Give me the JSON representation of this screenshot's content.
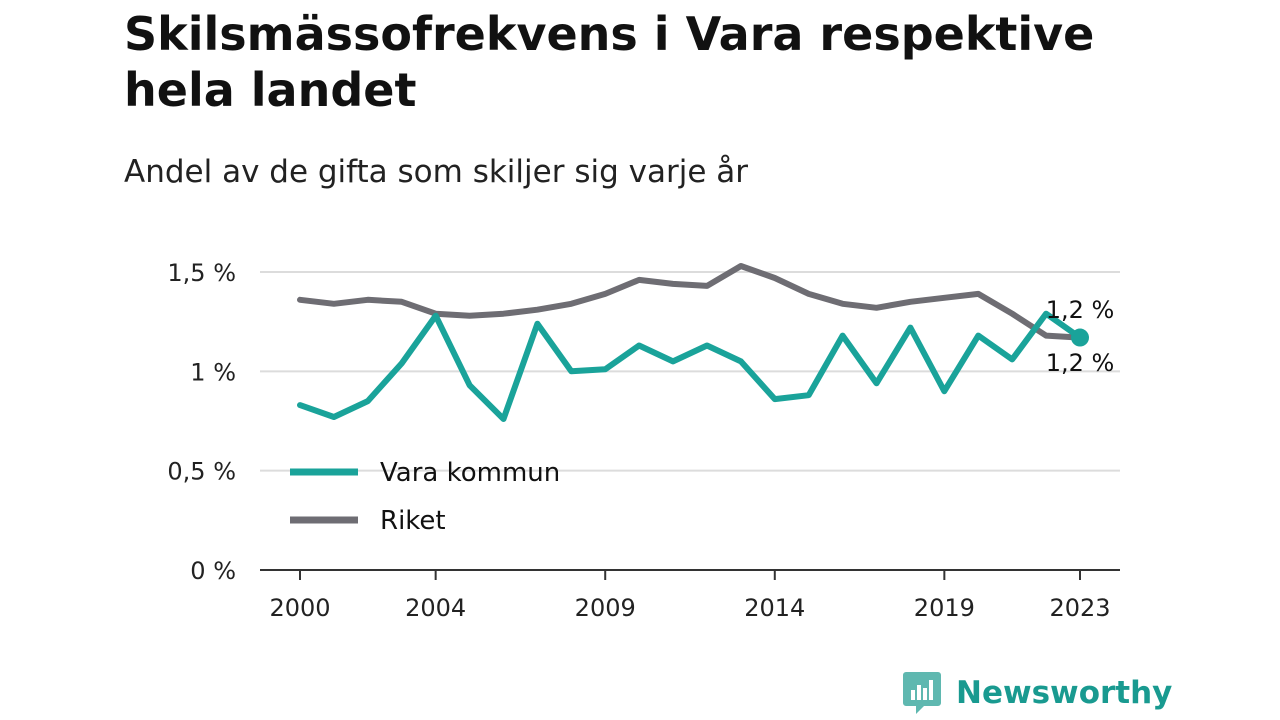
{
  "header": {
    "title": "Skilsmässofrekvens i Vara respektive hela landet",
    "subtitle": "Andel av de gifta som skiljer sig varje år"
  },
  "brand": {
    "name": "Newsworthy",
    "icon": "bar-chart-bubble-icon",
    "color": "#199a90"
  },
  "chart_data": {
    "type": "line",
    "title": "Skilsmässofrekvens i Vara respektive hela landet",
    "subtitle": "Andel av de gifta som skiljer sig varje år",
    "xlabel": "",
    "ylabel": "",
    "x": [
      2000,
      2001,
      2002,
      2003,
      2004,
      2005,
      2006,
      2007,
      2008,
      2009,
      2010,
      2011,
      2012,
      2013,
      2014,
      2015,
      2016,
      2017,
      2018,
      2019,
      2020,
      2021,
      2022,
      2023
    ],
    "xticks": [
      2000,
      2004,
      2009,
      2014,
      2019,
      2023
    ],
    "xtick_labels": [
      "2000",
      "2004",
      "2009",
      "2014",
      "2019",
      "2023"
    ],
    "xlim": [
      2000,
      2023
    ],
    "ylim": [
      0,
      1.5
    ],
    "yticks": [
      0,
      0.5,
      1,
      1.5
    ],
    "ytick_labels": [
      "0 %",
      "0,5 %",
      "1 %",
      "1,5 %"
    ],
    "grid": true,
    "legend": "inside-lower-left",
    "series": [
      {
        "name": "Vara kommun",
        "color": "#1aa39a",
        "values": [
          0.83,
          0.77,
          0.85,
          1.04,
          1.28,
          0.93,
          0.76,
          1.24,
          1.0,
          1.01,
          1.13,
          1.05,
          1.13,
          1.05,
          0.86,
          0.88,
          1.18,
          0.94,
          1.22,
          0.9,
          1.18,
          1.06,
          1.29,
          1.17
        ],
        "end_label": "1,2 %"
      },
      {
        "name": "Riket",
        "color": "#6e6d73",
        "values": [
          1.36,
          1.34,
          1.36,
          1.35,
          1.29,
          1.28,
          1.29,
          1.31,
          1.34,
          1.39,
          1.46,
          1.44,
          1.43,
          1.53,
          1.47,
          1.39,
          1.34,
          1.32,
          1.35,
          1.37,
          1.39,
          1.29,
          1.18,
          1.17
        ],
        "end_label": "1,2 %"
      }
    ]
  }
}
